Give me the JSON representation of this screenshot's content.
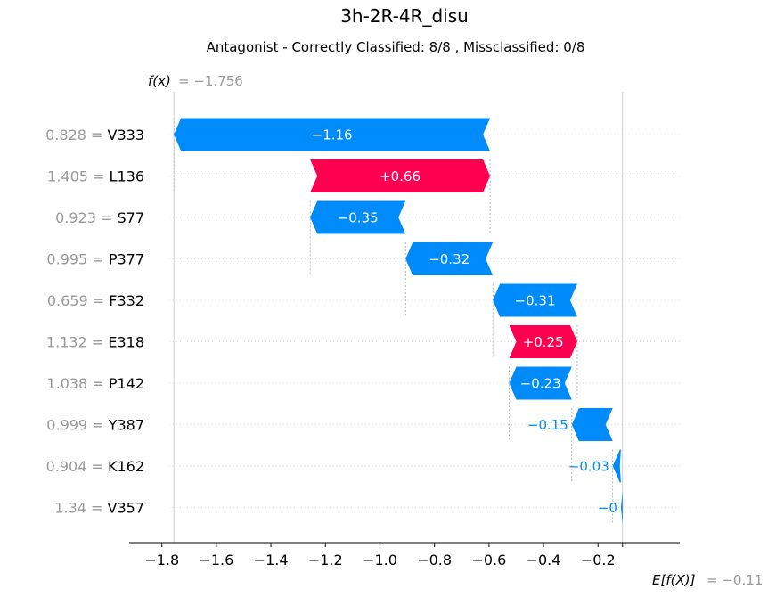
{
  "chart_data": {
    "type": "waterfall",
    "title": "3h-2R-4R_disu",
    "subtitle": "Antagonist - Correctly Classified: 8/8 , Missclassified: 0/8",
    "fx_label": "f(x)",
    "fx_value_text": "= −1.756",
    "fx_value": -1.756,
    "base_label": "E[f(X)]",
    "base_value_text": "= −0.11",
    "base_value": -0.11,
    "xlim": [
      -1.92,
      0.1
    ],
    "xticks": [
      -1.8,
      -1.6,
      -1.4,
      -1.2,
      -1.0,
      -0.8,
      -0.6,
      -0.4,
      -0.2
    ],
    "xtick_labels": [
      "−1.8",
      "−1.6",
      "−1.4",
      "−1.2",
      "−1.0",
      "−0.8",
      "−0.6",
      "−0.4",
      "−0.2"
    ],
    "features": [
      {
        "value": "0.828",
        "name": "V333",
        "start": -0.596,
        "end": -1.756,
        "label": "−1.16"
      },
      {
        "value": "1.405",
        "name": "L136",
        "start": -1.256,
        "end": -0.596,
        "label": "+0.66"
      },
      {
        "value": "0.923",
        "name": "S77",
        "start": -0.906,
        "end": -1.256,
        "label": "−0.35"
      },
      {
        "value": "0.995",
        "name": "P377",
        "start": -0.586,
        "end": -0.906,
        "label": "−0.32"
      },
      {
        "value": "0.659",
        "name": "F332",
        "start": -0.276,
        "end": -0.586,
        "label": "−0.31"
      },
      {
        "value": "1.132",
        "name": "E318",
        "start": -0.526,
        "end": -0.276,
        "label": "+0.25"
      },
      {
        "value": "1.038",
        "name": "P142",
        "start": -0.296,
        "end": -0.526,
        "label": "−0.23"
      },
      {
        "value": "0.999",
        "name": "Y387",
        "start": -0.146,
        "end": -0.296,
        "label": "−0.15"
      },
      {
        "value": "0.904",
        "name": "K162",
        "start": -0.116,
        "end": -0.146,
        "label": "−0.03"
      },
      {
        "value": "1.34",
        "name": "V357",
        "start": -0.11,
        "end": -0.116,
        "label": "−0"
      }
    ],
    "colors": {
      "negative": "#008bfb",
      "positive": "#ff0051",
      "muted": "#999999",
      "text": "#000000",
      "grid": "#cccccc"
    }
  }
}
